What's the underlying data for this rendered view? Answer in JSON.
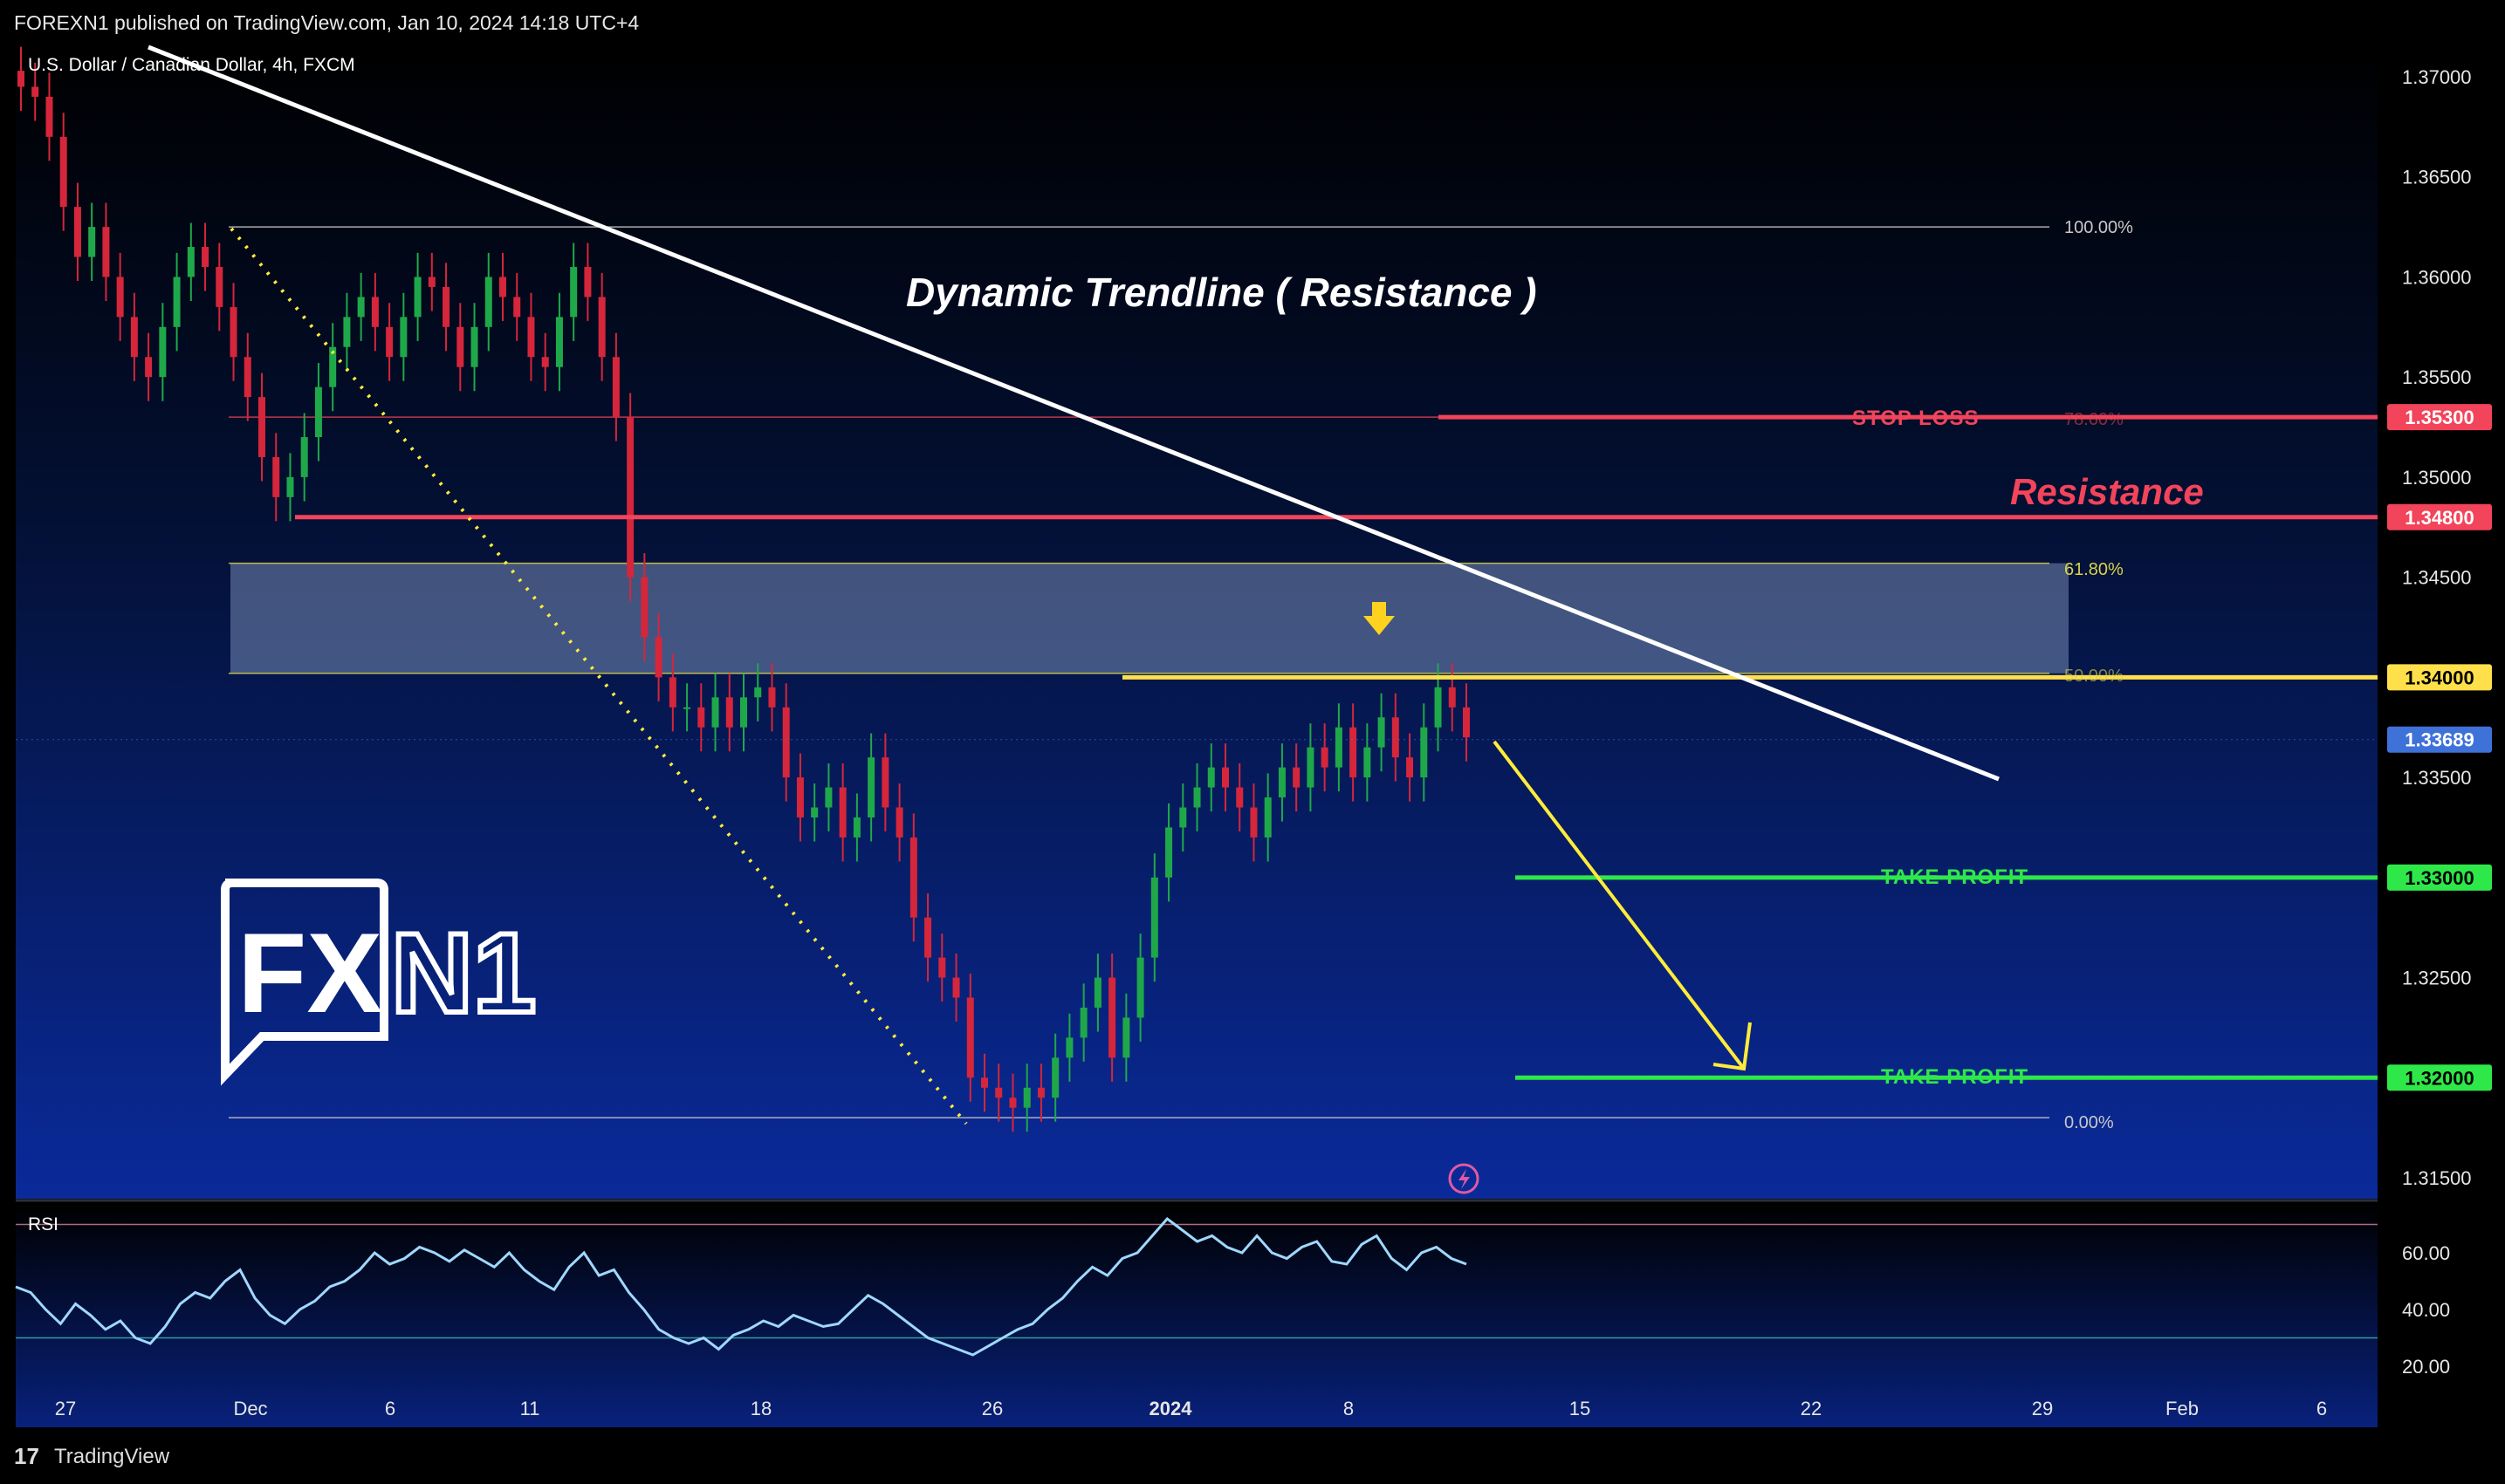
{
  "header": {
    "published": "FOREXN1 published on TradingView.com, Jan 10, 2024 14:18 UTC+4"
  },
  "chart_data": {
    "type": "candlestick",
    "title": "U.S. Dollar / Canadian Dollar, 4h, FXCM",
    "ylim": [
      1.3132,
      1.3724
    ],
    "y_ticks": [
      "1.37000",
      "1.36500",
      "1.36000",
      "1.35500",
      "1.35000",
      "1.34500",
      "1.33500",
      "1.32500",
      "1.31500"
    ],
    "x_ticks": [
      "27",
      "Dec",
      "6",
      "11",
      "18",
      "26",
      "2024",
      "8",
      "15",
      "22",
      "29",
      "Feb",
      "6"
    ],
    "fib_levels": [
      {
        "label": "100.00%",
        "value": 1.3625,
        "color": "#c8c8c8"
      },
      {
        "label": "78.60%",
        "value": 1.353,
        "color": "#e04050"
      },
      {
        "label": "61.80%",
        "value": 1.3457,
        "color": "#d8d24a"
      },
      {
        "label": "50.00%",
        "value": 1.3402,
        "color": "#d8d24a"
      },
      {
        "label": "0.00%",
        "value": 1.318,
        "color": "#c8c8c8"
      }
    ],
    "levels": [
      {
        "label": "STOP LOSS",
        "value": 1.353,
        "tag": "1.35300",
        "color": "#f2445a"
      },
      {
        "label": "Resistance",
        "value": 1.348,
        "tag": "1.34800",
        "color": "#f2445a"
      },
      {
        "label": "",
        "value": 1.34,
        "tag": "1.34000",
        "color": "#ffe04a"
      },
      {
        "label": "TAKE PROFIT",
        "value": 1.33,
        "tag": "1.33000",
        "color": "#2ee84a"
      },
      {
        "label": "TAKE PROFIT",
        "value": 1.32,
        "tag": "1.32000",
        "color": "#2ee84a"
      }
    ],
    "current_price": {
      "value": 1.33689,
      "tag": "1.33689"
    },
    "annotations": {
      "trendline_label": "Dynamic Trendline ( Resistance )"
    },
    "candles_close": [
      1.3695,
      1.369,
      1.367,
      1.3635,
      1.361,
      1.3625,
      1.36,
      1.358,
      1.356,
      1.355,
      1.3575,
      1.36,
      1.3615,
      1.3605,
      1.3585,
      1.356,
      1.354,
      1.351,
      1.349,
      1.35,
      1.352,
      1.3545,
      1.3565,
      1.358,
      1.359,
      1.3575,
      1.356,
      1.358,
      1.36,
      1.3595,
      1.3575,
      1.3555,
      1.3575,
      1.36,
      1.359,
      1.358,
      1.356,
      1.3555,
      1.358,
      1.3605,
      1.359,
      1.356,
      1.353,
      1.345,
      1.342,
      1.34,
      1.3385,
      1.3385,
      1.3375,
      1.339,
      1.3375,
      1.339,
      1.3395,
      1.3385,
      1.335,
      1.333,
      1.3335,
      1.3345,
      1.332,
      1.333,
      1.336,
      1.3335,
      1.332,
      1.328,
      1.326,
      1.325,
      1.324,
      1.32,
      1.3195,
      1.319,
      1.3185,
      1.3195,
      1.319,
      1.321,
      1.322,
      1.3235,
      1.325,
      1.321,
      1.323,
      1.326,
      1.33,
      1.3325,
      1.3335,
      1.3345,
      1.3355,
      1.3345,
      1.3335,
      1.332,
      1.334,
      1.3355,
      1.3345,
      1.3365,
      1.3355,
      1.3375,
      1.335,
      1.3365,
      1.338,
      1.336,
      1.335,
      1.3375,
      1.3395,
      1.3385,
      1.337
    ],
    "rsi": {
      "label": "RSI",
      "y_ticks": [
        "60.00",
        "40.00",
        "20.00"
      ],
      "upper": 70,
      "lower": 30,
      "values": [
        48,
        46,
        40,
        35,
        42,
        38,
        33,
        36,
        30,
        28,
        34,
        42,
        46,
        44,
        50,
        54,
        44,
        38,
        35,
        40,
        43,
        48,
        50,
        54,
        60,
        56,
        58,
        62,
        60,
        57,
        61,
        58,
        55,
        60,
        54,
        50,
        47,
        55,
        60,
        52,
        54,
        46,
        40,
        33,
        30,
        28,
        30,
        26,
        31,
        33,
        36,
        34,
        38,
        36,
        34,
        35,
        40,
        45,
        42,
        38,
        34,
        30,
        28,
        26,
        24,
        27,
        30,
        33,
        35,
        40,
        44,
        50,
        55,
        52,
        58,
        60,
        66,
        72,
        68,
        64,
        66,
        62,
        60,
        66,
        60,
        58,
        62,
        64,
        57,
        56,
        63,
        66,
        58,
        54,
        60,
        62,
        58,
        56
      ]
    },
    "watermark": "FXN1"
  },
  "footer": {
    "brand": "TradingView"
  }
}
